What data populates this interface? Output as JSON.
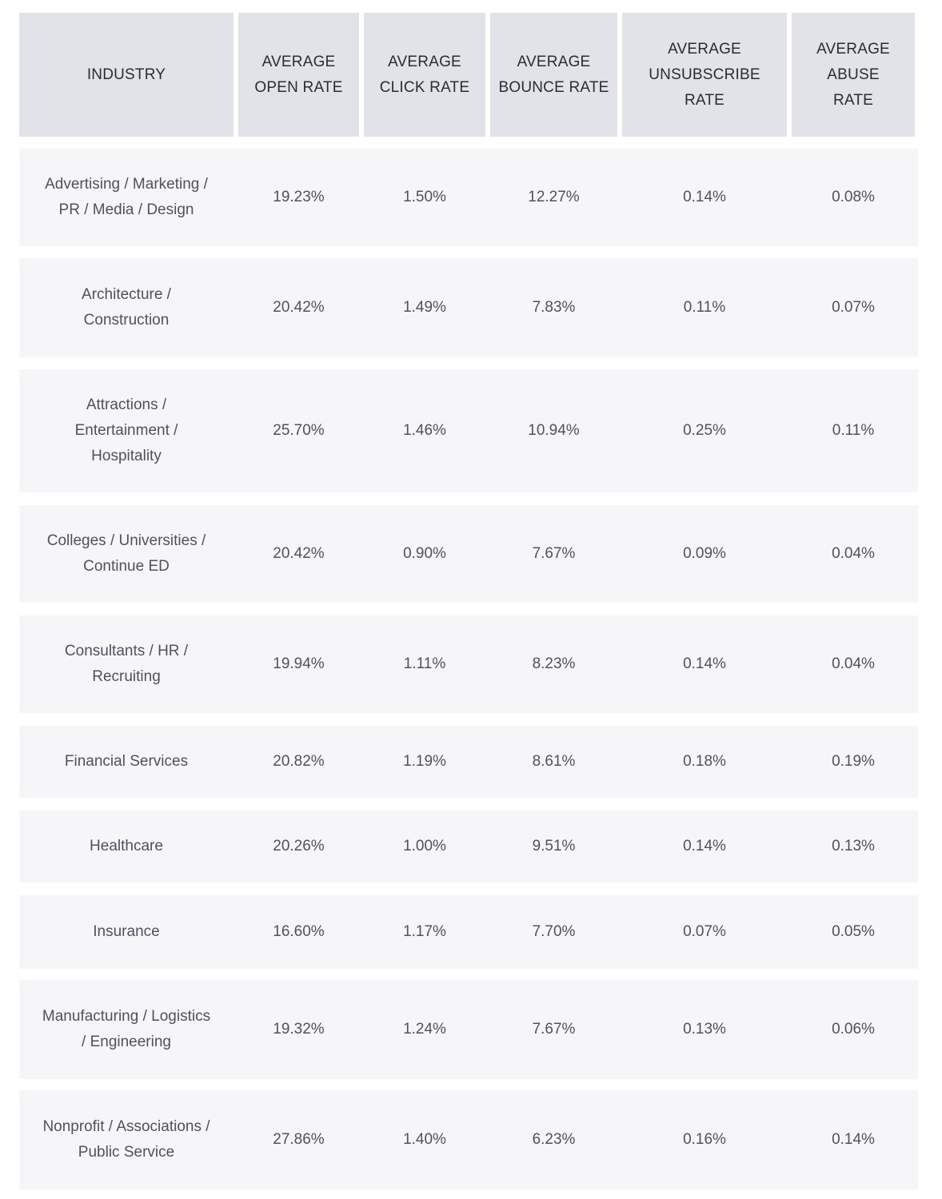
{
  "table": {
    "headers": [
      "INDUSTRY",
      "AVERAGE OPEN RATE",
      "AVERAGE CLICK RATE",
      "AVERAGE BOUNCE RATE",
      "AVERAGE UNSUBSCRIBE RATE",
      "AVERAGE ABUSE RATE"
    ],
    "rows": [
      {
        "industry": "Advertising / Marketing / PR / Media / Design",
        "open": "19.23%",
        "click": "1.50%",
        "bounce": "12.27%",
        "unsubscribe": "0.14%",
        "abuse": "0.08%"
      },
      {
        "industry": "Architecture / Construction",
        "open": "20.42%",
        "click": "1.49%",
        "bounce": "7.83%",
        "unsubscribe": "0.11%",
        "abuse": "0.07%"
      },
      {
        "industry": "Attractions / Entertainment / Hospitality",
        "open": "25.70%",
        "click": "1.46%",
        "bounce": "10.94%",
        "unsubscribe": "0.25%",
        "abuse": "0.11%"
      },
      {
        "industry": "Colleges / Universities / Continue ED",
        "open": "20.42%",
        "click": "0.90%",
        "bounce": "7.67%",
        "unsubscribe": "0.09%",
        "abuse": "0.04%"
      },
      {
        "industry": "Consultants / HR / Recruiting",
        "open": "19.94%",
        "click": "1.11%",
        "bounce": "8.23%",
        "unsubscribe": "0.14%",
        "abuse": "0.04%"
      },
      {
        "industry": "Financial Services",
        "open": "20.82%",
        "click": "1.19%",
        "bounce": "8.61%",
        "unsubscribe": "0.18%",
        "abuse": "0.19%"
      },
      {
        "industry": "Healthcare",
        "open": "20.26%",
        "click": "1.00%",
        "bounce": "9.51%",
        "unsubscribe": "0.14%",
        "abuse": "0.13%"
      },
      {
        "industry": "Insurance",
        "open": "16.60%",
        "click": "1.17%",
        "bounce": "7.70%",
        "unsubscribe": "0.07%",
        "abuse": "0.05%"
      },
      {
        "industry": "Manufacturing / Logistics / Engineering",
        "open": "19.32%",
        "click": "1.24%",
        "bounce": "7.67%",
        "unsubscribe": "0.13%",
        "abuse": "0.06%"
      },
      {
        "industry": "Nonprofit / Associations / Public Service",
        "open": "27.86%",
        "click": "1.40%",
        "bounce": "6.23%",
        "unsubscribe": "0.16%",
        "abuse": "0.14%"
      }
    ]
  }
}
